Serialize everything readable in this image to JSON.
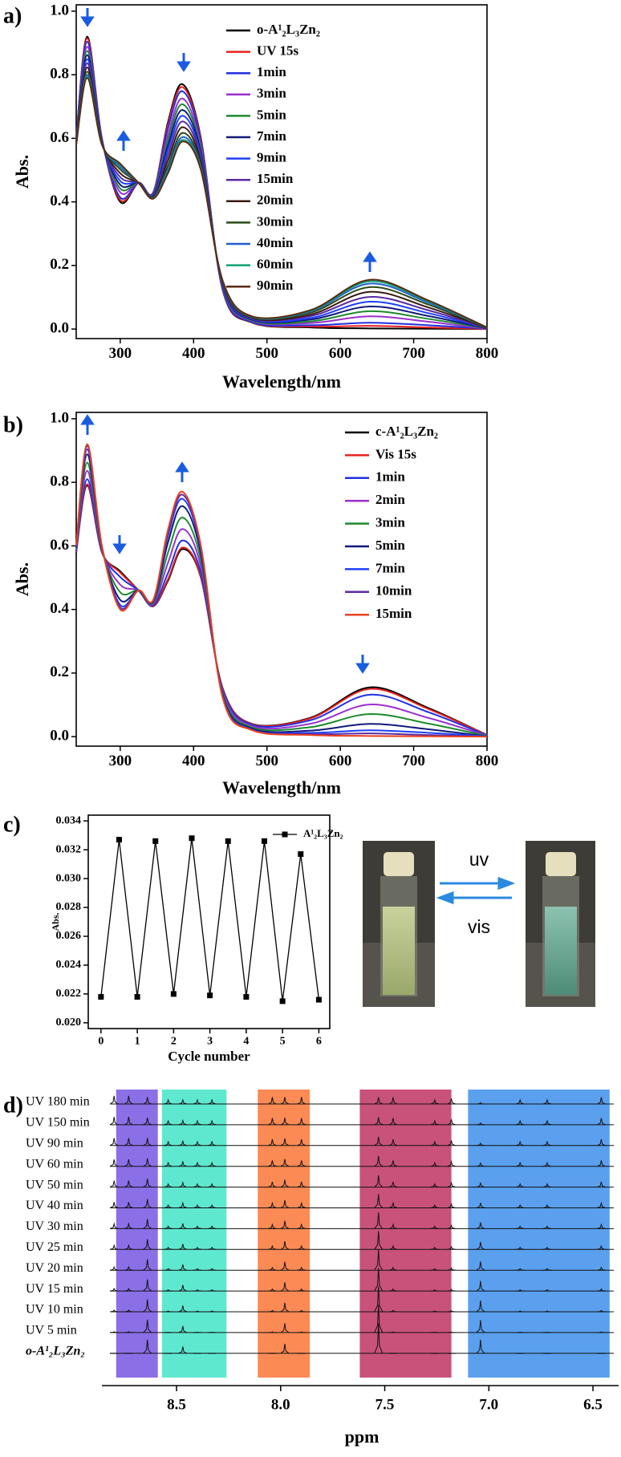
{
  "chart_data": [
    {
      "type": "line",
      "panel": "a)",
      "xlabel": "Wavelength/nm",
      "ylabel": "Abs.",
      "x": [
        240,
        255,
        275,
        300,
        325,
        345,
        365,
        385,
        410,
        440,
        480,
        560,
        640,
        720,
        800
      ],
      "xlim": [
        240,
        800
      ],
      "xticks": [
        300,
        400,
        500,
        600,
        700,
        800
      ],
      "ylim": [
        -0.03,
        1.02
      ],
      "yticks": [
        {
          "value": 0,
          "label": "0.0"
        },
        0.2,
        0.4,
        0.6,
        0.8,
        {
          "value": 1,
          "label": "1.0"
        }
      ],
      "series": [
        {
          "name": "o-A¹₂L₃Zn₂",
          "color": "#000000",
          "values": [
            0.6,
            0.92,
            0.6,
            0.4,
            0.46,
            0.43,
            0.65,
            0.77,
            0.6,
            0.12,
            0.02,
            0.005,
            0.002,
            0.001,
            0.0
          ]
        },
        {
          "name": "UV 15s",
          "color": "#e8211d",
          "values": [
            0.599,
            0.914,
            0.599,
            0.406,
            0.46,
            0.429,
            0.642,
            0.761,
            0.595,
            0.122,
            0.021,
            0.008,
            0.01,
            0.005,
            0.0
          ]
        },
        {
          "name": "1min",
          "color": "#2030e0",
          "values": [
            0.598,
            0.904,
            0.598,
            0.414,
            0.46,
            0.428,
            0.631,
            0.748,
            0.588,
            0.124,
            0.022,
            0.012,
            0.02,
            0.012,
            0.001
          ]
        },
        {
          "name": "3min",
          "color": "#9b30d0",
          "values": [
            0.595,
            0.888,
            0.595,
            0.43,
            0.46,
            0.425,
            0.61,
            0.725,
            0.575,
            0.128,
            0.025,
            0.019,
            0.04,
            0.023,
            0.001
          ]
        },
        {
          "name": "5min",
          "color": "#1e8a2e",
          "values": [
            0.593,
            0.875,
            0.593,
            0.442,
            0.46,
            0.423,
            0.594,
            0.707,
            0.565,
            0.131,
            0.027,
            0.024,
            0.056,
            0.032,
            0.002
          ]
        },
        {
          "name": "7min",
          "color": "#101a7a",
          "values": [
            0.591,
            0.862,
            0.591,
            0.454,
            0.46,
            0.421,
            0.578,
            0.689,
            0.555,
            0.134,
            0.029,
            0.03,
            0.071,
            0.041,
            0.002
          ]
        },
        {
          "name": "9min",
          "color": "#1f3fff",
          "values": [
            0.589,
            0.849,
            0.589,
            0.466,
            0.46,
            0.419,
            0.562,
            0.671,
            0.545,
            0.137,
            0.031,
            0.035,
            0.086,
            0.05,
            0.003
          ]
        },
        {
          "name": "15min",
          "color": "#5a2aa0",
          "values": [
            0.587,
            0.836,
            0.587,
            0.478,
            0.46,
            0.417,
            0.546,
            0.653,
            0.535,
            0.14,
            0.033,
            0.041,
            0.101,
            0.059,
            0.003
          ]
        },
        {
          "name": "20min",
          "color": "#3a1a10",
          "values": [
            0.585,
            0.823,
            0.585,
            0.49,
            0.46,
            0.415,
            0.53,
            0.635,
            0.525,
            0.143,
            0.035,
            0.046,
            0.117,
            0.068,
            0.004
          ]
        },
        {
          "name": "30min",
          "color": "#2c4a16",
          "values": [
            0.583,
            0.81,
            0.583,
            0.502,
            0.46,
            0.413,
            0.514,
            0.617,
            0.515,
            0.146,
            0.037,
            0.052,
            0.132,
            0.077,
            0.004
          ]
        },
        {
          "name": "40min",
          "color": "#1f5fd0",
          "values": [
            0.582,
            0.8,
            0.582,
            0.51,
            0.46,
            0.412,
            0.503,
            0.604,
            0.508,
            0.148,
            0.038,
            0.056,
            0.143,
            0.083,
            0.005
          ]
        },
        {
          "name": "60min",
          "color": "#10a070",
          "values": [
            0.581,
            0.794,
            0.581,
            0.516,
            0.46,
            0.411,
            0.495,
            0.595,
            0.503,
            0.149,
            0.039,
            0.058,
            0.15,
            0.087,
            0.005
          ]
        },
        {
          "name": "90min",
          "color": "#5a2a10",
          "values": [
            0.58,
            0.79,
            0.58,
            0.52,
            0.46,
            0.41,
            0.49,
            0.59,
            0.5,
            0.15,
            0.04,
            0.06,
            0.155,
            0.09,
            0.005
          ]
        }
      ]
    },
    {
      "type": "line",
      "panel": "b)",
      "xlabel": "Wavelength/nm",
      "ylabel": "Abs.",
      "x": [
        240,
        255,
        275,
        300,
        325,
        345,
        365,
        385,
        410,
        440,
        480,
        560,
        640,
        720,
        800
      ],
      "xlim": [
        240,
        800
      ],
      "xticks": [
        300,
        400,
        500,
        600,
        700,
        800
      ],
      "ylim": [
        -0.03,
        1.02
      ],
      "yticks": [
        {
          "value": 0,
          "label": "0.0"
        },
        0.2,
        0.4,
        0.6,
        0.8,
        {
          "value": 1,
          "label": "1.0"
        }
      ],
      "series": [
        {
          "name": "c-A¹₂L₃Zn₂",
          "color": "#000000",
          "values": [
            0.58,
            0.79,
            0.58,
            0.52,
            0.46,
            0.41,
            0.49,
            0.59,
            0.5,
            0.15,
            0.04,
            0.06,
            0.155,
            0.09,
            0.005
          ]
        },
        {
          "name": "Vis 15s",
          "color": "#e8211d",
          "values": [
            0.581,
            0.794,
            0.581,
            0.516,
            0.46,
            0.411,
            0.495,
            0.595,
            0.503,
            0.149,
            0.039,
            0.058,
            0.15,
            0.087,
            0.005
          ]
        },
        {
          "name": "1min",
          "color": "#2030e0",
          "values": [
            0.583,
            0.81,
            0.583,
            0.502,
            0.46,
            0.413,
            0.514,
            0.617,
            0.515,
            0.146,
            0.037,
            0.052,
            0.132,
            0.077,
            0.004
          ]
        },
        {
          "name": "2min",
          "color": "#9b30d0",
          "values": [
            0.587,
            0.836,
            0.587,
            0.478,
            0.46,
            0.417,
            0.546,
            0.653,
            0.535,
            0.14,
            0.033,
            0.041,
            0.101,
            0.059,
            0.003
          ]
        },
        {
          "name": "3min",
          "color": "#1e8a2e",
          "values": [
            0.591,
            0.862,
            0.591,
            0.454,
            0.46,
            0.421,
            0.578,
            0.689,
            0.555,
            0.134,
            0.029,
            0.03,
            0.071,
            0.041,
            0.002
          ]
        },
        {
          "name": "5min",
          "color": "#101a7a",
          "values": [
            0.595,
            0.888,
            0.595,
            0.43,
            0.46,
            0.425,
            0.61,
            0.725,
            0.575,
            0.128,
            0.025,
            0.019,
            0.04,
            0.023,
            0.001
          ]
        },
        {
          "name": "7min",
          "color": "#1f3fff",
          "values": [
            0.598,
            0.904,
            0.598,
            0.414,
            0.46,
            0.428,
            0.631,
            0.748,
            0.588,
            0.124,
            0.022,
            0.012,
            0.02,
            0.012,
            0.001
          ]
        },
        {
          "name": "10min",
          "color": "#5a2aa0",
          "values": [
            0.599,
            0.914,
            0.599,
            0.406,
            0.46,
            0.429,
            0.642,
            0.761,
            0.595,
            0.122,
            0.021,
            0.008,
            0.01,
            0.005,
            0.0
          ]
        },
        {
          "name": "15min",
          "color": "#e8401d",
          "values": [
            0.6,
            0.92,
            0.6,
            0.4,
            0.46,
            0.43,
            0.65,
            0.77,
            0.6,
            0.12,
            0.02,
            0.005,
            0.002,
            0.001,
            0.0
          ]
        }
      ]
    },
    {
      "type": "line",
      "panel": "c)",
      "xlabel": "Cycle number",
      "ylabel": "Abs.",
      "marker": "square",
      "x": [
        0,
        0.5,
        1,
        1.5,
        2,
        2.5,
        3,
        3.5,
        4,
        4.5,
        5,
        5.5,
        6
      ],
      "xlim": [
        -0.35,
        6.3
      ],
      "xticks": [
        0,
        1,
        2,
        3,
        4,
        5,
        6
      ],
      "ylim": [
        0.0196,
        0.0344
      ],
      "yticks": [
        {
          "value": 0.02,
          "label": "0.020"
        },
        0.022,
        0.024,
        0.026,
        0.028,
        {
          "value": 0.03,
          "label": "0.030"
        },
        0.032,
        0.034
      ],
      "series": [
        {
          "name": "A¹₂L₃Zn₂",
          "color": "#000000",
          "values": [
            0.0218,
            0.0327,
            0.0218,
            0.0326,
            0.022,
            0.0328,
            0.0219,
            0.0326,
            0.0218,
            0.0326,
            0.0215,
            0.0317,
            0.0216
          ]
        }
      ]
    },
    {
      "type": "spectrum",
      "panel": "d)",
      "xlabel": "ppm",
      "xlim": [
        8.82,
        6.4
      ],
      "xticks": [
        8.5,
        {
          "value": 8,
          "label": "8.0"
        },
        7.5,
        {
          "value": 7,
          "label": "7.0"
        },
        6.5
      ],
      "bands": [
        {
          "range": [
            8.79,
            8.59
          ],
          "color": "#8b6fe6"
        },
        {
          "range": [
            8.57,
            8.26
          ],
          "color": "#5fe8d0"
        },
        {
          "range": [
            8.11,
            7.86
          ],
          "color": "#fb8a55"
        },
        {
          "range": [
            7.62,
            7.18
          ],
          "color": "#c9527a"
        },
        {
          "range": [
            7.1,
            6.42
          ],
          "color": "#5aa0ee"
        }
      ],
      "x": [
        8.8,
        8.73,
        8.64,
        8.54,
        8.47,
        8.4,
        8.33,
        8.04,
        7.98,
        7.9,
        7.53,
        7.46,
        7.26,
        7.18,
        7.04,
        6.85,
        6.72,
        6.46
      ],
      "series": [
        {
          "name": "UV 180 min",
          "values": [
            0.6,
            0.6,
            0.5,
            0.3,
            0.3,
            0.3,
            0.3,
            0.5,
            0.5,
            0.5,
            0.5,
            0.5,
            0.3,
            0.4,
            0.1,
            0.3,
            0.3,
            0.5
          ]
        },
        {
          "name": "UV 150 min",
          "values": [
            0.58,
            0.58,
            0.52,
            0.29,
            0.31,
            0.29,
            0.29,
            0.49,
            0.51,
            0.49,
            0.55,
            0.49,
            0.29,
            0.39,
            0.13,
            0.29,
            0.29,
            0.49
          ]
        },
        {
          "name": "UV 90 min",
          "values": [
            0.55,
            0.55,
            0.54,
            0.28,
            0.32,
            0.28,
            0.28,
            0.46,
            0.52,
            0.46,
            0.64,
            0.46,
            0.28,
            0.37,
            0.17,
            0.28,
            0.28,
            0.46
          ]
        },
        {
          "name": "UV 60 min",
          "values": [
            0.51,
            0.51,
            0.58,
            0.26,
            0.33,
            0.26,
            0.26,
            0.43,
            0.53,
            0.43,
            0.76,
            0.43,
            0.26,
            0.34,
            0.24,
            0.26,
            0.26,
            0.43
          ]
        },
        {
          "name": "UV 50 min",
          "values": [
            0.47,
            0.47,
            0.61,
            0.23,
            0.34,
            0.23,
            0.23,
            0.39,
            0.54,
            0.39,
            0.87,
            0.39,
            0.23,
            0.31,
            0.3,
            0.23,
            0.23,
            0.39
          ]
        },
        {
          "name": "UV 40 min",
          "values": [
            0.42,
            0.42,
            0.65,
            0.21,
            0.36,
            0.21,
            0.21,
            0.35,
            0.56,
            0.35,
            1.01,
            0.35,
            0.21,
            0.28,
            0.37,
            0.21,
            0.21,
            0.35
          ]
        },
        {
          "name": "UV 30 min",
          "values": [
            0.36,
            0.36,
            0.7,
            0.18,
            0.38,
            0.18,
            0.18,
            0.3,
            0.58,
            0.3,
            1.18,
            0.3,
            0.18,
            0.24,
            0.46,
            0.18,
            0.18,
            0.3
          ]
        },
        {
          "name": "UV 25 min",
          "values": [
            0.3,
            0.3,
            0.75,
            0.15,
            0.4,
            0.15,
            0.15,
            0.25,
            0.6,
            0.25,
            1.35,
            0.25,
            0.15,
            0.2,
            0.55,
            0.15,
            0.15,
            0.25
          ]
        },
        {
          "name": "UV 20 min",
          "values": [
            0.24,
            0.24,
            0.8,
            0.12,
            0.42,
            0.12,
            0.12,
            0.2,
            0.62,
            0.2,
            1.52,
            0.2,
            0.12,
            0.16,
            0.64,
            0.12,
            0.12,
            0.2
          ]
        },
        {
          "name": "UV 15 min",
          "values": [
            0.18,
            0.18,
            0.85,
            0.09,
            0.44,
            0.09,
            0.09,
            0.15,
            0.64,
            0.15,
            1.69,
            0.15,
            0.09,
            0.12,
            0.73,
            0.09,
            0.09,
            0.15
          ]
        },
        {
          "name": "UV 10 min",
          "values": [
            0.12,
            0.12,
            0.9,
            0.06,
            0.46,
            0.06,
            0.06,
            0.1,
            0.66,
            0.1,
            1.86,
            0.1,
            0.06,
            0.08,
            0.82,
            0.06,
            0.06,
            0.1
          ]
        },
        {
          "name": "UV 5 min",
          "values": [
            0.06,
            0.06,
            0.95,
            0.03,
            0.48,
            0.03,
            0.03,
            0.05,
            0.68,
            0.05,
            2.03,
            0.05,
            0.03,
            0.04,
            0.91,
            0.03,
            0.03,
            0.05
          ]
        },
        {
          "name": "o-A¹₂L₃Zn₂",
          "values": [
            0,
            0,
            1.0,
            0,
            0.5,
            0,
            0,
            0,
            0.7,
            0,
            2.2,
            0,
            0,
            0,
            1.0,
            0,
            0,
            0
          ]
        }
      ]
    }
  ],
  "photo_labels": [
    "uv",
    "vis"
  ]
}
